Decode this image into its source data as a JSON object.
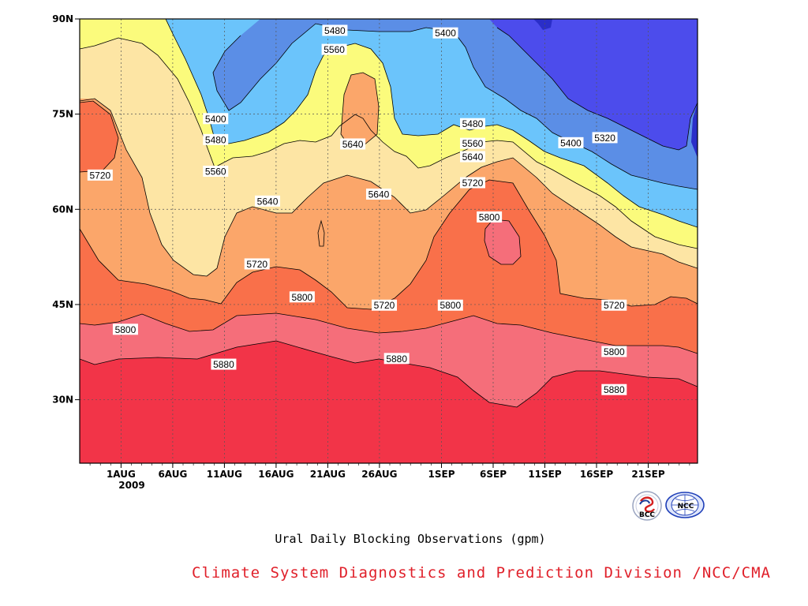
{
  "chart_data": {
    "type": "heatmap",
    "title": "Ural Daily Blocking Observations (gpm)",
    "year_label": "2009",
    "x_ticks": [
      "1AUG",
      "6AUG",
      "11AUG",
      "16AUG",
      "21AUG",
      "26AUG",
      "1SEP",
      "6SEP",
      "11SEP",
      "16SEP",
      "21SEP"
    ],
    "x_tick_days": [
      4,
      9,
      14,
      19,
      24,
      29,
      35,
      40,
      45,
      50,
      55
    ],
    "xlim_days": [
      0,
      60
    ],
    "y_ticks": [
      "30N",
      "45N",
      "60N",
      "75N",
      "90N"
    ],
    "y_tick_values": [
      30,
      45,
      60,
      75,
      90
    ],
    "ylim": [
      20,
      90
    ],
    "grid": true,
    "contour_levels": [
      5320,
      5400,
      5480,
      5560,
      5640,
      5720,
      5800,
      5880
    ],
    "fill_colors": [
      "#2a2ec8",
      "#4c4cec",
      "#5b8ee6",
      "#6bc4fb",
      "#fbfb7c",
      "#fde5a4",
      "#fba66a",
      "#f9704a",
      "#f56e7a",
      "#f23448"
    ],
    "contour_labels": [
      {
        "text": "5480",
        "day": 41.3,
        "lat": 88.2
      },
      {
        "text": "5400",
        "day": 59.2,
        "lat": 87.8
      },
      {
        "text": "5560",
        "day": 41.2,
        "lat": 85.2
      },
      {
        "text": "5400",
        "day": 22.0,
        "lat": 74.3
      },
      {
        "text": "5480",
        "day": 22.0,
        "lat": 71.0
      },
      {
        "text": "5480",
        "day": 63.6,
        "lat": 73.5
      },
      {
        "text": "5320",
        "day": 85.0,
        "lat": 71.3
      },
      {
        "text": "5560",
        "day": 63.6,
        "lat": 70.4
      },
      {
        "text": "5400",
        "day": 79.5,
        "lat": 70.5
      },
      {
        "text": "5640",
        "day": 44.2,
        "lat": 70.3
      },
      {
        "text": "5640",
        "day": 63.6,
        "lat": 68.3
      },
      {
        "text": "5720",
        "day": 3.3,
        "lat": 65.4
      },
      {
        "text": "5560",
        "day": 22.0,
        "lat": 66.0
      },
      {
        "text": "5720",
        "day": 63.6,
        "lat": 64.2
      },
      {
        "text": "5640",
        "day": 48.4,
        "lat": 62.4
      },
      {
        "text": "5640",
        "day": 30.4,
        "lat": 61.3
      },
      {
        "text": "5800",
        "day": 66.3,
        "lat": 58.8
      },
      {
        "text": "5720",
        "day": 28.7,
        "lat": 51.4
      },
      {
        "text": "5800",
        "day": 36.0,
        "lat": 46.2
      },
      {
        "text": "5720",
        "day": 49.3,
        "lat": 44.9
      },
      {
        "text": "5800",
        "day": 60.0,
        "lat": 44.9
      },
      {
        "text": "5720",
        "day": 86.5,
        "lat": 44.9
      },
      {
        "text": "5800",
        "day": 7.4,
        "lat": 41.1
      },
      {
        "text": "5800",
        "day": 86.5,
        "lat": 37.6
      },
      {
        "text": "5880",
        "day": 23.3,
        "lat": 35.6
      },
      {
        "text": "5880",
        "day": 51.3,
        "lat": 36.5
      },
      {
        "text": "5880",
        "day": 86.5,
        "lat": 31.6
      }
    ]
  },
  "credit": "Climate System Diagnostics and Prediction Division /NCC/CMA",
  "logos": {
    "bcc_text": "BCC",
    "ncc_text": "NCC",
    "bcc_color": "#1a3c9a",
    "ncc_color": "#1f3fb8"
  }
}
